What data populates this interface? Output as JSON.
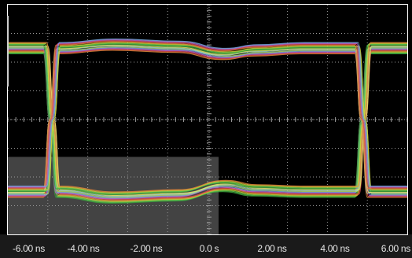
{
  "display": {
    "background_color": "#000000",
    "frame_color": "#ffffff",
    "grid_color": "#9a9a9a",
    "mask_region_color": "#5a5a5a",
    "label_bar_color": "#1a1a1a",
    "label_color": "#e6e6e6"
  },
  "x_axis": {
    "tick_labels": [
      "-6.00 ns",
      "-4.00 ns",
      "-2.00 ns",
      "0.0 s",
      "2.00 ns",
      "4.00 ns",
      "6.00 ns"
    ],
    "tick_values_ns": [
      -6,
      -4,
      -2,
      0,
      2,
      4,
      6
    ],
    "range_ns": [
      -6.4,
      6.3
    ],
    "unit": "ns"
  },
  "mask_region": {
    "x_range_ns": [
      -6.4,
      0.3
    ],
    "level_range": [
      -1.6,
      -0.52
    ]
  },
  "chart_data": {
    "type": "line",
    "description_kind": "eye_diagram",
    "x_unit": "ns",
    "xlim": [
      -6.4,
      6.3
    ],
    "ylim": [
      -1.6,
      1.6
    ],
    "high_level": 1.0,
    "low_level": -1.0,
    "crossings_ns": [
      -5.0,
      4.9
    ],
    "grid": true,
    "trace_colors": [
      "#3a9d3a",
      "#5fcf4f",
      "#c9cf3a",
      "#e0873a",
      "#d94a4a",
      "#c061c9",
      "#7aa7e0",
      "#b2d56a",
      "#9ed6c5",
      "#e8e86a"
    ],
    "series": [
      {
        "x": [
          -6.4,
          -5.2,
          -5.0,
          -4.8,
          -3.0,
          -1.0,
          0.5,
          1.5,
          3.0,
          4.7,
          4.9,
          5.1,
          6.3
        ],
        "y": [
          1.0,
          1.0,
          0.0,
          -1.0,
          -1.08,
          -1.05,
          -0.92,
          -0.98,
          -1.0,
          -1.0,
          0.0,
          1.0,
          1.0
        ]
      },
      {
        "x": [
          -6.4,
          -5.2,
          -5.0,
          -4.8,
          -3.0,
          -1.0,
          0.5,
          1.5,
          3.0,
          4.7,
          4.9,
          5.1,
          6.3
        ],
        "y": [
          -1.0,
          -1.0,
          0.0,
          1.0,
          1.05,
          1.02,
          0.92,
          0.97,
          1.0,
          1.0,
          0.0,
          -1.0,
          -1.0
        ]
      }
    ]
  }
}
